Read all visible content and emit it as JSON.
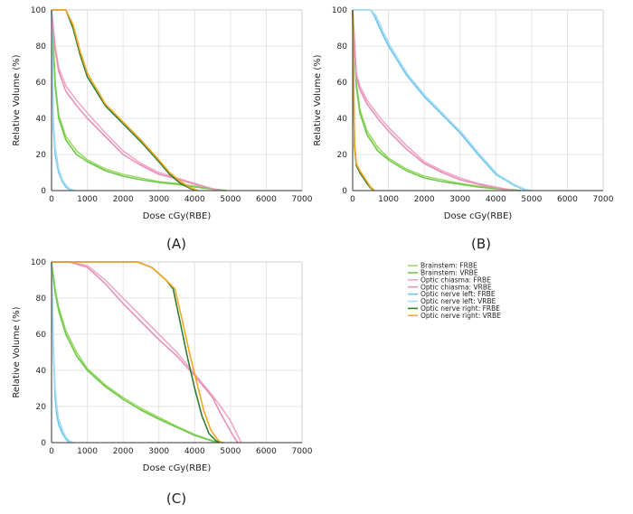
{
  "legend": [
    {
      "name": "Brainstem: FRBE",
      "color": "#9fd86a"
    },
    {
      "name": "Brainstem: VRBE",
      "color": "#6fc94a"
    },
    {
      "name": "Optic chiasma: FRBE",
      "color": "#f0a8c4"
    },
    {
      "name": "Optic chiasma: VRBE",
      "color": "#e592b8"
    },
    {
      "name": "Optic nerve left: FRBE",
      "color": "#6cc6ec"
    },
    {
      "name": "Optic nerve left: VRBE",
      "color": "#a6dcf4"
    },
    {
      "name": "Optic nerve right: FRBE",
      "color": "#2e7d32"
    },
    {
      "name": "Optic nerve right: VRBE",
      "color": "#f5a623"
    }
  ],
  "chart_data": [
    {
      "type": "line",
      "panel_label": "(A)",
      "xlabel": "Dose cGy(RBE)",
      "ylabel": "Relative Volume (%)",
      "xlim": [
        0,
        7000
      ],
      "ylim": [
        0,
        100
      ],
      "xticks": [
        "0",
        "1000",
        "2000",
        "3000",
        "4000",
        "5000",
        "6000",
        "7000"
      ],
      "yticks": [
        "0",
        "20",
        "40",
        "60",
        "80",
        "100"
      ],
      "grid": true,
      "series": [
        {
          "name": "Brainstem: FRBE",
          "color": "#9fd86a",
          "x": [
            0,
            100,
            200,
            400,
            700,
            1000,
            1500,
            2000,
            2500,
            3000,
            3500,
            4000,
            4500,
            4900
          ],
          "y": [
            100,
            60,
            42,
            30,
            22,
            17,
            12,
            9,
            7,
            5,
            4,
            2.5,
            1,
            0
          ]
        },
        {
          "name": "Brainstem: VRBE",
          "color": "#6fc94a",
          "x": [
            0,
            100,
            200,
            400,
            700,
            1000,
            1500,
            2000,
            2500,
            3000,
            3500,
            4000,
            4500,
            4900
          ],
          "y": [
            100,
            58,
            40,
            28,
            20,
            16,
            11,
            8,
            6,
            4.5,
            3.5,
            2,
            0.8,
            0
          ]
        },
        {
          "name": "Optic chiasma: FRBE",
          "color": "#f0a8c4",
          "x": [
            0,
            100,
            200,
            400,
            700,
            1000,
            1500,
            2000,
            2500,
            3000,
            3500,
            4000,
            4500,
            4700
          ],
          "y": [
            100,
            80,
            68,
            58,
            50,
            43,
            32,
            22,
            15,
            10,
            7,
            4,
            1,
            0
          ]
        },
        {
          "name": "Optic chiasma: VRBE",
          "color": "#e592b8",
          "x": [
            0,
            100,
            200,
            400,
            700,
            1000,
            1500,
            2000,
            2500,
            3000,
            3500,
            4000,
            4500,
            4750
          ],
          "y": [
            100,
            78,
            66,
            55,
            47,
            40,
            30,
            20,
            14,
            9,
            6.5,
            3.5,
            1,
            0
          ]
        },
        {
          "name": "Optic nerve left: FRBE",
          "color": "#6cc6ec",
          "x": [
            0,
            50,
            100,
            200,
            300,
            400,
            500,
            600
          ],
          "y": [
            100,
            35,
            20,
            10,
            5,
            2,
            0.5,
            0
          ]
        },
        {
          "name": "Optic nerve left: VRBE",
          "color": "#a6dcf4",
          "x": [
            0,
            50,
            100,
            200,
            300,
            400,
            500,
            650
          ],
          "y": [
            100,
            40,
            24,
            12,
            6,
            3,
            1,
            0
          ]
        },
        {
          "name": "Optic nerve right: FRBE",
          "color": "#2e7d32",
          "x": [
            0,
            400,
            600,
            800,
            1000,
            1500,
            2000,
            2500,
            3000,
            3300,
            3600,
            3900,
            4100
          ],
          "y": [
            100,
            100,
            90,
            75,
            63,
            47,
            37,
            27,
            16,
            9,
            4,
            1,
            0
          ]
        },
        {
          "name": "Optic nerve right: VRBE",
          "color": "#f5a623",
          "x": [
            0,
            400,
            600,
            800,
            1000,
            1500,
            2000,
            2500,
            3000,
            3300,
            3600,
            3900,
            4100
          ],
          "y": [
            100,
            100,
            92,
            77,
            65,
            48,
            38,
            28,
            17,
            10,
            5,
            1.5,
            0
          ]
        }
      ]
    },
    {
      "type": "line",
      "panel_label": "(B)",
      "xlabel": "Dose cGy(RBE)",
      "ylabel": "Relative Volume (%)",
      "xlim": [
        0,
        7000
      ],
      "ylim": [
        0,
        100
      ],
      "xticks": [
        "0",
        "1000",
        "2000",
        "3000",
        "4000",
        "5000",
        "6000",
        "7000"
      ],
      "yticks": [
        "0",
        "20",
        "40",
        "60",
        "80",
        "100"
      ],
      "grid": true,
      "series": [
        {
          "name": "Brainstem: FRBE",
          "color": "#9fd86a",
          "x": [
            0,
            100,
            200,
            400,
            700,
            1000,
            1500,
            2000,
            2500,
            3000,
            3500,
            4000,
            4500,
            4700
          ],
          "y": [
            100,
            60,
            45,
            33,
            24,
            18,
            12,
            8,
            6,
            4,
            2.5,
            1.5,
            0.5,
            0
          ]
        },
        {
          "name": "Brainstem: VRBE",
          "color": "#6fc94a",
          "x": [
            0,
            100,
            200,
            400,
            700,
            1000,
            1500,
            2000,
            2500,
            3000,
            3500,
            4000,
            4500,
            4700
          ],
          "y": [
            100,
            58,
            43,
            31,
            22,
            17,
            11,
            7,
            5,
            3.5,
            2,
            1,
            0.3,
            0
          ]
        },
        {
          "name": "Optic chiasma: FRBE",
          "color": "#f0a8c4",
          "x": [
            0,
            100,
            200,
            400,
            700,
            1000,
            1500,
            2000,
            2500,
            3000,
            3500,
            4000,
            4500
          ],
          "y": [
            100,
            65,
            58,
            50,
            42,
            35,
            25,
            16,
            11,
            7,
            4,
            2,
            0
          ]
        },
        {
          "name": "Optic chiasma: VRBE",
          "color": "#e592b8",
          "x": [
            0,
            100,
            200,
            400,
            700,
            1000,
            1500,
            2000,
            2500,
            3000,
            3500,
            4000,
            4500
          ],
          "y": [
            100,
            63,
            56,
            48,
            40,
            33,
            23,
            15,
            10,
            6,
            3.5,
            1.5,
            0
          ]
        },
        {
          "name": "Optic nerve left: FRBE",
          "color": "#6cc6ec",
          "x": [
            0,
            500,
            600,
            800,
            1000,
            1500,
            2000,
            2500,
            3000,
            3500,
            4000,
            4500,
            4800,
            4950
          ],
          "y": [
            100,
            100,
            97,
            88,
            80,
            64,
            52,
            42,
            32,
            20,
            9,
            3,
            0.5,
            0
          ]
        },
        {
          "name": "Optic nerve left: VRBE",
          "color": "#a6dcf4",
          "x": [
            0,
            500,
            650,
            850,
            1050,
            1550,
            2050,
            2550,
            3050,
            3550,
            4050,
            4550,
            4850,
            5000
          ],
          "y": [
            100,
            100,
            97,
            88,
            80,
            64,
            52,
            42,
            32,
            20,
            9,
            3,
            0.5,
            0
          ]
        },
        {
          "name": "Optic nerve right: FRBE",
          "color": "#2e7d32",
          "x": [
            0,
            50,
            100,
            200,
            300,
            400,
            500,
            600
          ],
          "y": [
            100,
            25,
            14,
            10,
            7,
            4,
            1.5,
            0
          ]
        },
        {
          "name": "Optic nerve right: VRBE",
          "color": "#f5a623",
          "x": [
            0,
            50,
            100,
            200,
            300,
            400,
            500,
            620
          ],
          "y": [
            100,
            27,
            15,
            11,
            8,
            5,
            2,
            0
          ]
        }
      ]
    },
    {
      "type": "line",
      "panel_label": "(C)",
      "xlabel": "Dose cGy(RBE)",
      "ylabel": "Relative Volume (%)",
      "xlim": [
        0,
        7000
      ],
      "ylim": [
        0,
        100
      ],
      "xticks": [
        "0",
        "1000",
        "2000",
        "3000",
        "4000",
        "5000",
        "6000",
        "7000"
      ],
      "yticks": [
        "0",
        "20",
        "40",
        "60",
        "80",
        "100"
      ],
      "grid": true,
      "series": [
        {
          "name": "Brainstem: FRBE",
          "color": "#9fd86a",
          "x": [
            0,
            100,
            200,
            400,
            700,
            1000,
            1500,
            2000,
            2500,
            3000,
            3500,
            4000,
            4500,
            4800
          ],
          "y": [
            100,
            85,
            75,
            62,
            50,
            41,
            32,
            25,
            19,
            14,
            9,
            4.5,
            1,
            0
          ]
        },
        {
          "name": "Brainstem: VRBE",
          "color": "#6fc94a",
          "x": [
            0,
            100,
            200,
            400,
            700,
            1000,
            1500,
            2000,
            2500,
            3000,
            3500,
            4000,
            4500,
            4800
          ],
          "y": [
            100,
            83,
            73,
            60,
            48,
            40,
            31,
            24,
            18,
            13,
            8.5,
            4,
            0.8,
            0
          ]
        },
        {
          "name": "Optic chiasma: FRBE",
          "color": "#f0a8c4",
          "x": [
            0,
            500,
            1000,
            1500,
            2000,
            2500,
            3000,
            3500,
            4000,
            4500,
            4800,
            5000,
            5200,
            5300
          ],
          "y": [
            100,
            100,
            98,
            90,
            80,
            70,
            60,
            50,
            38,
            26,
            18,
            12,
            4,
            0
          ]
        },
        {
          "name": "Optic chiasma: VRBE",
          "color": "#e592b8",
          "x": [
            0,
            500,
            1000,
            1500,
            2000,
            2500,
            3000,
            3500,
            4000,
            4500,
            4700,
            4900,
            5100,
            5200
          ],
          "y": [
            100,
            100,
            97,
            88,
            77,
            67,
            57,
            48,
            37,
            25,
            17,
            10,
            3,
            0
          ]
        },
        {
          "name": "Optic nerve left: FRBE",
          "color": "#6cc6ec",
          "x": [
            0,
            50,
            100,
            150,
            200,
            300,
            400,
            500
          ],
          "y": [
            100,
            50,
            25,
            15,
            10,
            5,
            2,
            0
          ]
        },
        {
          "name": "Optic nerve left: VRBE",
          "color": "#a6dcf4",
          "x": [
            0,
            50,
            100,
            150,
            200,
            300,
            400,
            500,
            600
          ],
          "y": [
            100,
            55,
            30,
            20,
            13,
            7,
            3,
            1,
            0
          ]
        },
        {
          "name": "Optic nerve right: FRBE",
          "color": "#2e7d32",
          "x": [
            0,
            2400,
            2800,
            3200,
            3400,
            3600,
            3800,
            4000,
            4200,
            4400,
            4600,
            4700
          ],
          "y": [
            100,
            100,
            97,
            90,
            85,
            66,
            47,
            30,
            15,
            5,
            1,
            0
          ]
        },
        {
          "name": "Optic nerve right: VRBE",
          "color": "#f5a623",
          "x": [
            0,
            2400,
            2800,
            3200,
            3450,
            3650,
            3850,
            4050,
            4250,
            4450,
            4650,
            4750
          ],
          "y": [
            100,
            100,
            97,
            90,
            85,
            68,
            50,
            34,
            18,
            7,
            1.5,
            0
          ]
        }
      ]
    }
  ]
}
